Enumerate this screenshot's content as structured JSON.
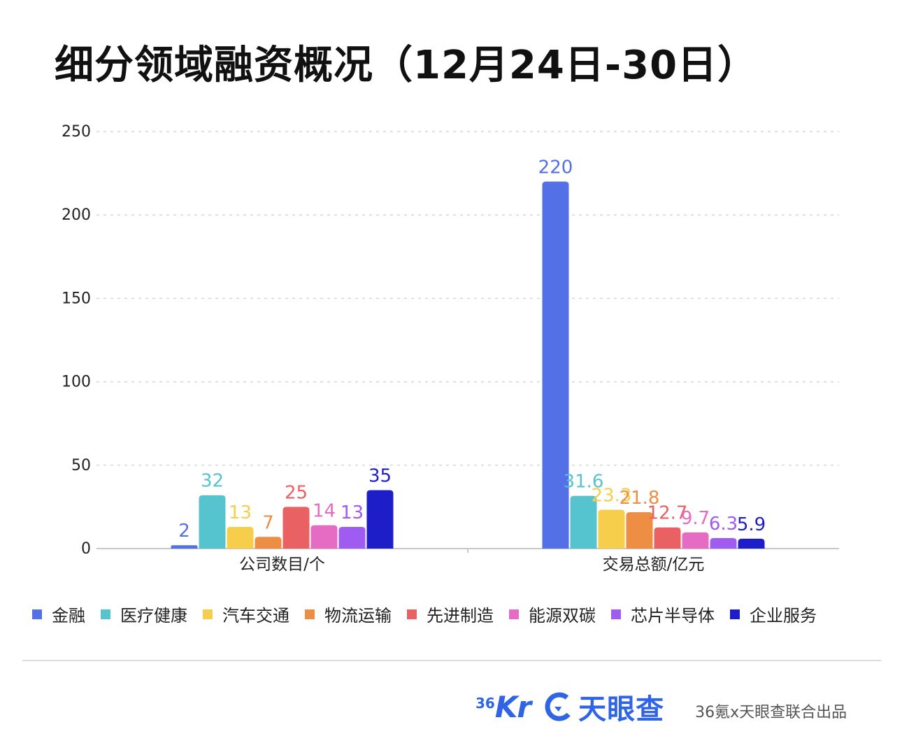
{
  "title": "细分领域融资概况（12月24日-30日）",
  "chart_data": {
    "type": "bar",
    "categories": [
      "公司数目/个",
      "交易总额/亿元"
    ],
    "series": [
      {
        "name": "金融",
        "values": [
          2,
          220
        ],
        "labels": [
          "2",
          "220"
        ],
        "color": "#5470e6"
      },
      {
        "name": "医疗健康",
        "values": [
          32,
          31.6
        ],
        "labels": [
          "32",
          "31.6"
        ],
        "color": "#56c4cf"
      },
      {
        "name": "汽车交通",
        "values": [
          13,
          23.3
        ],
        "labels": [
          "13",
          "23.3"
        ],
        "color": "#f7ce4c"
      },
      {
        "name": "物流运输",
        "values": [
          7,
          21.8
        ],
        "labels": [
          "7",
          "21.8"
        ],
        "color": "#ee8e45"
      },
      {
        "name": "先进制造",
        "values": [
          25,
          12.7
        ],
        "labels": [
          "25",
          "12.7"
        ],
        "color": "#ea6163"
      },
      {
        "name": "能源双碳",
        "values": [
          14,
          9.7
        ],
        "labels": [
          "14",
          "9.7"
        ],
        "color": "#e56bc3"
      },
      {
        "name": "芯片半导体",
        "values": [
          13,
          6.3
        ],
        "labels": [
          "13",
          "6.3"
        ],
        "color": "#a05cf0"
      },
      {
        "name": "企业服务",
        "values": [
          35,
          5.9
        ],
        "labels": [
          "35",
          "5.9"
        ],
        "color": "#1e1ec8"
      }
    ],
    "yticks": [
      "0",
      "50",
      "100",
      "150",
      "200",
      "250"
    ],
    "ylim": [
      0,
      250
    ],
    "grid": true,
    "legend_position": "bottom"
  },
  "footer": {
    "logo_36kr_num": "36",
    "logo_36kr_text": "Kr",
    "logo_tyc_text": "天眼查",
    "credit": "36氪x天眼查联合出品"
  }
}
